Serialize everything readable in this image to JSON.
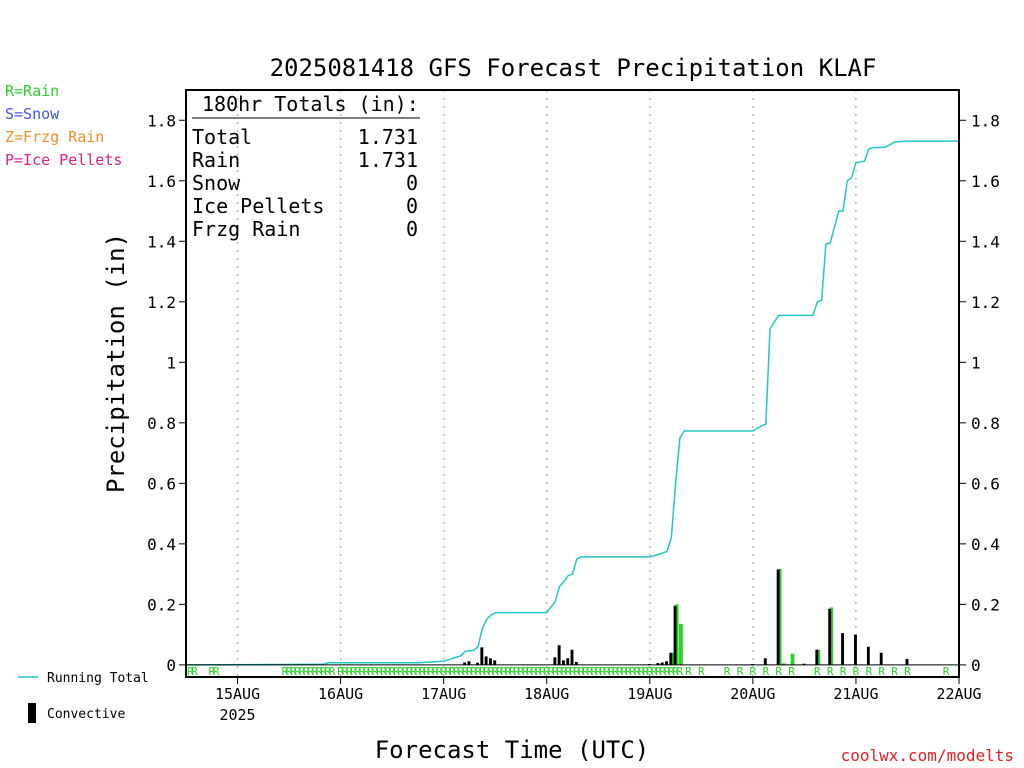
{
  "chart_data": {
    "type": "bar",
    "title": "2025081418 GFS Forecast Precipitation KLAF",
    "ylabel": "Precipitation (in)",
    "xlabel": "Forecast Time (UTC)",
    "ylim": [
      -0.04,
      1.9
    ],
    "y_ticks": [
      0,
      0.2,
      0.4,
      0.6,
      0.8,
      1,
      1.2,
      1.4,
      1.6,
      1.8
    ],
    "y_tick_labels": [
      "0",
      "0.2",
      "0.4",
      "0.6",
      "0.8",
      "1",
      "1.2",
      "1.4",
      "1.6",
      "1.8"
    ],
    "xlim_hours": [
      -6,
      174
    ],
    "x_ticks": [
      {
        "hour": 6,
        "label": "15AUG",
        "sublabel": "2025"
      },
      {
        "hour": 30,
        "label": "16AUG",
        "sublabel": ""
      },
      {
        "hour": 54,
        "label": "17AUG",
        "sublabel": ""
      },
      {
        "hour": 78,
        "label": "18AUG",
        "sublabel": ""
      },
      {
        "hour": 102,
        "label": "19AUG",
        "sublabel": ""
      },
      {
        "hour": 126,
        "label": "20AUG",
        "sublabel": ""
      },
      {
        "hour": 150,
        "label": "21AUG",
        "sublabel": ""
      },
      {
        "hour": 174,
        "label": "22AUG",
        "sublabel": ""
      }
    ],
    "grid": "vertical-dotted",
    "series": [
      {
        "name": "Running Total",
        "type": "line",
        "color": "#20c8c8",
        "x": [
          -6,
          26,
          27,
          48,
          54,
          58,
          59,
          61,
          62,
          63,
          64,
          65,
          66,
          67,
          68,
          78,
          80,
          81,
          82,
          83,
          84,
          85,
          86,
          102,
          104,
          106,
          107,
          108,
          109,
          110,
          126,
          128,
          129,
          130,
          132,
          138,
          140,
          141,
          142,
          143,
          144,
          146,
          147,
          148,
          149,
          150,
          152,
          153,
          154,
          156,
          157,
          159,
          162,
          163,
          180
        ],
        "y": [
          0,
          0.002,
          0.007,
          0.007,
          0.012,
          0.03,
          0.045,
          0.048,
          0.06,
          0.12,
          0.15,
          0.165,
          0.172,
          0.173,
          0.173,
          0.173,
          0.21,
          0.26,
          0.275,
          0.295,
          0.3,
          0.35,
          0.357,
          0.357,
          0.365,
          0.375,
          0.42,
          0.6,
          0.75,
          0.773,
          0.773,
          0.79,
          0.795,
          1.11,
          1.155,
          1.155,
          1.155,
          1.2,
          1.205,
          1.39,
          1.395,
          1.5,
          1.5,
          1.6,
          1.61,
          1.66,
          1.665,
          1.705,
          1.71,
          1.71,
          1.712,
          1.728,
          1.731,
          1.731,
          1.731
        ]
      },
      {
        "name": "Convective",
        "type": "bar",
        "color": "#000000",
        "x": [
          59,
          60,
          62,
          63,
          64,
          65,
          66,
          80,
          81,
          82,
          83,
          84,
          85,
          102,
          104,
          105,
          106,
          107,
          108,
          126,
          129,
          132,
          138,
          141,
          144,
          147,
          150,
          153,
          156,
          162
        ],
        "values": [
          0.008,
          0.012,
          0.007,
          0.058,
          0.028,
          0.022,
          0.015,
          0.025,
          0.065,
          0.015,
          0.022,
          0.05,
          0.01,
          0.003,
          0.006,
          0.008,
          0.012,
          0.04,
          0.195,
          0.003,
          0.022,
          0.315,
          0.004,
          0.05,
          0.185,
          0.105,
          0.1,
          0.06,
          0.04,
          0.02
        ]
      },
      {
        "name": "Rain",
        "type": "bar",
        "color": "#2bd12b",
        "x": [
          107,
          108,
          109,
          132,
          133,
          135,
          141,
          144
        ],
        "values": [
          0.04,
          0.2,
          0.135,
          0.317,
          0.005,
          0.037,
          0.05,
          0.19
        ]
      }
    ],
    "ptype_markers": {
      "letter": "R",
      "color": "#2bd12b",
      "hours": [
        -5,
        -4,
        0,
        1,
        17,
        18,
        19,
        20,
        21,
        22,
        23,
        24,
        25,
        26,
        27,
        28,
        30,
        31,
        32,
        33,
        34,
        35,
        36,
        37,
        38,
        39,
        40,
        41,
        42,
        43,
        44,
        45,
        46,
        47,
        48,
        49,
        50,
        51,
        52,
        53,
        54,
        55,
        56,
        57,
        58,
        59,
        60,
        61,
        62,
        63,
        64,
        65,
        66,
        67,
        68,
        69,
        70,
        71,
        72,
        73,
        74,
        75,
        76,
        77,
        78,
        79,
        80,
        81,
        82,
        83,
        84,
        85,
        86,
        87,
        88,
        89,
        90,
        91,
        92,
        93,
        94,
        95,
        96,
        97,
        98,
        99,
        100,
        101,
        102,
        103,
        104,
        105,
        106,
        107,
        108,
        109,
        111,
        114,
        120,
        123,
        126,
        129,
        132,
        135,
        141,
        144,
        147,
        150,
        153,
        156,
        159,
        162,
        171
      ]
    },
    "totals_box": {
      "header": "180hr Totals (in):",
      "rows": [
        {
          "label": "Total",
          "value": "1.731"
        },
        {
          "label": "Rain",
          "value": "1.731"
        },
        {
          "label": "Snow",
          "value": "0"
        },
        {
          "label": "Ice Pellets",
          "value": "0"
        },
        {
          "label": "Frzg Rain",
          "value": "0"
        }
      ]
    },
    "ptype_legend": [
      {
        "text": "R=Rain",
        "color": "#2bd12b"
      },
      {
        "text": "S=Snow",
        "color": "#4455dd"
      },
      {
        "text": "Z=Frzg Rain",
        "color": "#f0902a"
      },
      {
        "text": "P=Ice Pellets",
        "color": "#e0208a"
      }
    ],
    "legend": {
      "placement": "bottom-left",
      "running_total_label": "Running Total",
      "convective_label": "Convective"
    },
    "credit": "coolwx.com/modelts"
  }
}
